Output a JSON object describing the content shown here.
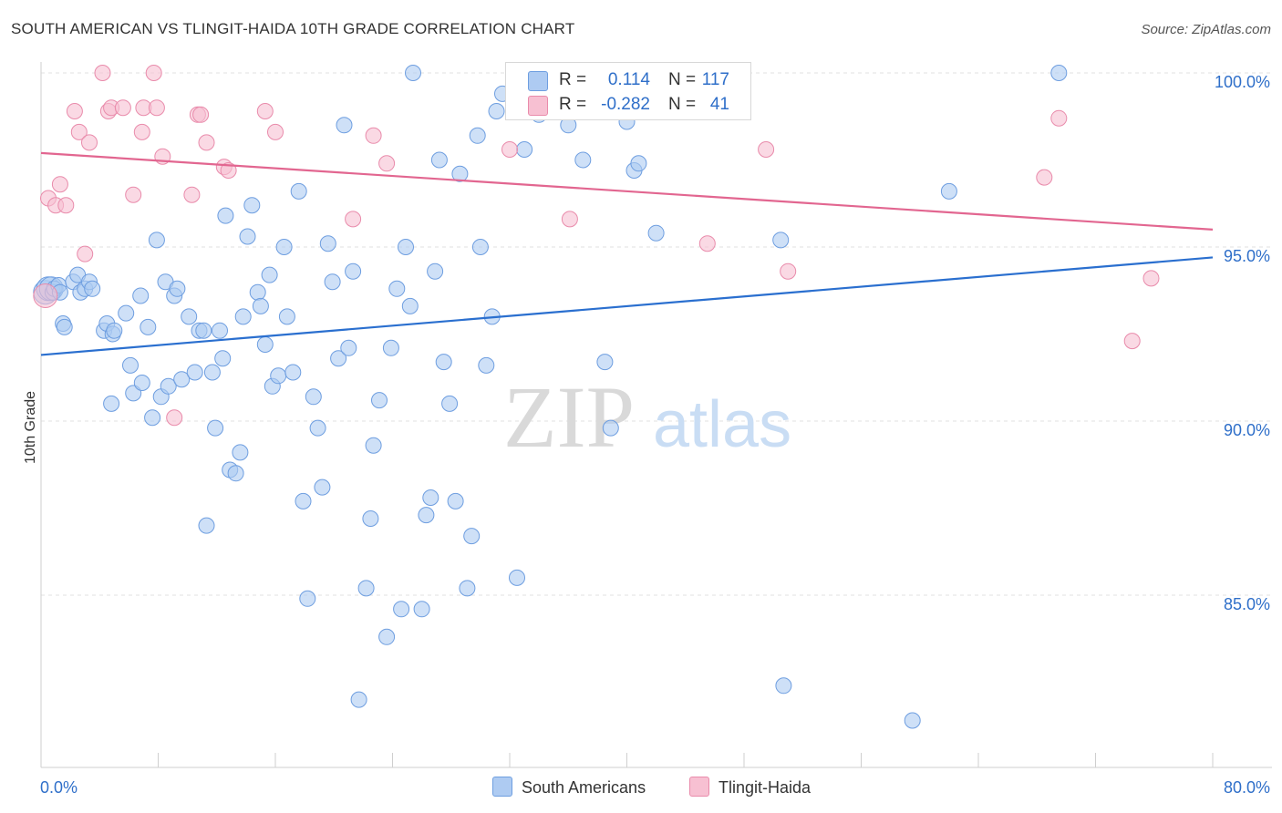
{
  "title": "SOUTH AMERICAN VS TLINGIT-HAIDA 10TH GRADE CORRELATION CHART",
  "source": "Source: ZipAtlas.com",
  "watermark": {
    "zip": "ZIP",
    "atlas": "atlas"
  },
  "legend_top": {
    "rows": [
      {
        "r_label": "R =",
        "r_value": "0.114",
        "n_label": "N =",
        "n_value": "117",
        "color": "#aecbf2",
        "border": "#6e9ee0"
      },
      {
        "r_label": "R =",
        "r_value": "-0.282",
        "n_label": "N =",
        "n_value": "41",
        "color": "#f7c0d2",
        "border": "#e98bab"
      }
    ]
  },
  "legend_bottom": {
    "items": [
      {
        "label": "South Americans",
        "color": "#aecbf2",
        "border": "#6e9ee0"
      },
      {
        "label": "Tlingit-Haida",
        "color": "#f7c0d2",
        "border": "#e98bab"
      }
    ]
  },
  "chart_data": {
    "type": "scatter",
    "title": "SOUTH AMERICAN VS TLINGIT-HAIDA 10TH GRADE CORRELATION CHART",
    "xlabel": "",
    "ylabel": "10th Grade",
    "xlim": [
      0,
      80
    ],
    "ylim": [
      80.5,
      100.6
    ],
    "x_tick_labels": [
      "0.0%",
      "80.0%"
    ],
    "y_ticks": [
      85,
      90,
      95,
      100
    ],
    "y_tick_labels": [
      "85.0%",
      "90.0%",
      "95.0%",
      "100.0%"
    ],
    "grid": "horizontal dashed",
    "legend": "top-center",
    "series": [
      {
        "name": "South Americans",
        "color": "#aecbf2",
        "stroke": "#6e9ee0",
        "line_color": "#2a6fcf",
        "trend": {
          "x": [
            0,
            80
          ],
          "y": [
            91.9,
            94.7
          ]
        },
        "points": [
          [
            0.3,
            93.7
          ],
          [
            0.5,
            93.8
          ],
          [
            0.7,
            93.8
          ],
          [
            0.8,
            93.7
          ],
          [
            0.9,
            93.8
          ],
          [
            1.2,
            93.9
          ],
          [
            1.3,
            93.7
          ],
          [
            1.5,
            92.8
          ],
          [
            1.6,
            92.7
          ],
          [
            2.2,
            94.0
          ],
          [
            2.5,
            94.2
          ],
          [
            2.7,
            93.7
          ],
          [
            3.0,
            93.8
          ],
          [
            3.3,
            94.0
          ],
          [
            3.5,
            93.8
          ],
          [
            4.3,
            92.6
          ],
          [
            4.5,
            92.8
          ],
          [
            4.9,
            92.5
          ],
          [
            5.0,
            92.6
          ],
          [
            4.8,
            90.5
          ],
          [
            5.8,
            93.1
          ],
          [
            6.1,
            91.6
          ],
          [
            6.3,
            90.8
          ],
          [
            6.8,
            93.6
          ],
          [
            6.9,
            91.1
          ],
          [
            7.3,
            92.7
          ],
          [
            7.6,
            90.1
          ],
          [
            7.9,
            95.2
          ],
          [
            8.2,
            90.7
          ],
          [
            8.5,
            94.0
          ],
          [
            8.7,
            91.0
          ],
          [
            9.1,
            93.6
          ],
          [
            9.3,
            93.8
          ],
          [
            9.6,
            91.2
          ],
          [
            10.1,
            93.0
          ],
          [
            10.5,
            91.4
          ],
          [
            10.8,
            92.6
          ],
          [
            11.1,
            92.6
          ],
          [
            11.3,
            87.0
          ],
          [
            11.7,
            91.4
          ],
          [
            11.9,
            89.8
          ],
          [
            12.2,
            92.6
          ],
          [
            12.4,
            91.8
          ],
          [
            12.6,
            95.9
          ],
          [
            12.9,
            88.6
          ],
          [
            13.3,
            88.5
          ],
          [
            13.6,
            89.1
          ],
          [
            13.8,
            93.0
          ],
          [
            14.1,
            95.3
          ],
          [
            14.4,
            96.2
          ],
          [
            14.8,
            93.7
          ],
          [
            15.0,
            93.3
          ],
          [
            15.3,
            92.2
          ],
          [
            15.6,
            94.2
          ],
          [
            15.8,
            91.0
          ],
          [
            16.2,
            91.3
          ],
          [
            16.6,
            95.0
          ],
          [
            16.8,
            93.0
          ],
          [
            17.2,
            91.4
          ],
          [
            17.6,
            96.6
          ],
          [
            17.9,
            87.7
          ],
          [
            18.2,
            84.9
          ],
          [
            18.6,
            90.7
          ],
          [
            18.9,
            89.8
          ],
          [
            19.2,
            88.1
          ],
          [
            19.6,
            95.1
          ],
          [
            19.9,
            94.0
          ],
          [
            20.3,
            91.8
          ],
          [
            20.7,
            98.5
          ],
          [
            21.0,
            92.1
          ],
          [
            21.3,
            94.3
          ],
          [
            21.7,
            82.0
          ],
          [
            22.2,
            85.2
          ],
          [
            22.5,
            87.2
          ],
          [
            22.7,
            89.3
          ],
          [
            23.1,
            90.6
          ],
          [
            23.6,
            83.8
          ],
          [
            23.9,
            92.1
          ],
          [
            24.3,
            93.8
          ],
          [
            24.6,
            84.6
          ],
          [
            24.9,
            95.0
          ],
          [
            25.2,
            93.3
          ],
          [
            25.4,
            100.0
          ],
          [
            26.0,
            84.6
          ],
          [
            26.3,
            87.3
          ],
          [
            26.6,
            87.8
          ],
          [
            26.9,
            94.3
          ],
          [
            27.2,
            97.5
          ],
          [
            27.5,
            91.7
          ],
          [
            27.9,
            90.5
          ],
          [
            28.3,
            87.7
          ],
          [
            28.6,
            97.1
          ],
          [
            29.1,
            85.2
          ],
          [
            29.4,
            86.7
          ],
          [
            29.8,
            98.2
          ],
          [
            30.0,
            95.0
          ],
          [
            30.4,
            91.6
          ],
          [
            30.8,
            93.0
          ],
          [
            31.1,
            98.9
          ],
          [
            31.5,
            99.4
          ],
          [
            32.5,
            85.5
          ],
          [
            33.0,
            97.8
          ],
          [
            34.0,
            98.8
          ],
          [
            35.0,
            100.0
          ],
          [
            36.0,
            98.5
          ],
          [
            37.0,
            97.5
          ],
          [
            37.5,
            99.7
          ],
          [
            38.0,
            100.0
          ],
          [
            38.5,
            91.7
          ],
          [
            38.9,
            89.8
          ],
          [
            40.0,
            98.6
          ],
          [
            40.5,
            97.2
          ],
          [
            40.8,
            97.4
          ],
          [
            42.0,
            95.4
          ],
          [
            50.5,
            95.2
          ],
          [
            50.7,
            82.4
          ],
          [
            59.5,
            81.4
          ],
          [
            62.0,
            96.6
          ],
          [
            69.5,
            100.0
          ]
        ]
      },
      {
        "name": "Tlingit-Haida",
        "color": "#f7c0d2",
        "stroke": "#e98bab",
        "line_color": "#e26690",
        "trend": {
          "x": [
            0,
            80
          ],
          "y": [
            97.7,
            95.5
          ]
        },
        "points": [
          [
            0.3,
            93.6
          ],
          [
            0.5,
            96.4
          ],
          [
            1.0,
            96.2
          ],
          [
            1.3,
            96.8
          ],
          [
            1.7,
            96.2
          ],
          [
            2.3,
            98.9
          ],
          [
            2.6,
            98.3
          ],
          [
            3.0,
            94.8
          ],
          [
            3.3,
            98.0
          ],
          [
            4.2,
            100.0
          ],
          [
            4.6,
            98.9
          ],
          [
            4.8,
            99.0
          ],
          [
            5.6,
            99.0
          ],
          [
            6.3,
            96.5
          ],
          [
            6.9,
            98.3
          ],
          [
            7.0,
            99.0
          ],
          [
            7.7,
            100.0
          ],
          [
            7.9,
            99.0
          ],
          [
            8.3,
            97.6
          ],
          [
            9.1,
            90.1
          ],
          [
            10.3,
            96.5
          ],
          [
            10.7,
            98.8
          ],
          [
            10.9,
            98.8
          ],
          [
            11.3,
            98.0
          ],
          [
            12.5,
            97.3
          ],
          [
            12.8,
            97.2
          ],
          [
            15.3,
            98.9
          ],
          [
            16.0,
            98.3
          ],
          [
            21.3,
            95.8
          ],
          [
            22.7,
            98.2
          ],
          [
            23.6,
            97.4
          ],
          [
            32.0,
            97.8
          ],
          [
            36.1,
            95.8
          ],
          [
            36.3,
            100.0
          ],
          [
            45.5,
            95.1
          ],
          [
            49.5,
            97.8
          ],
          [
            51.0,
            94.3
          ],
          [
            68.5,
            97.0
          ],
          [
            69.5,
            98.7
          ],
          [
            74.5,
            92.3
          ],
          [
            75.8,
            94.1
          ]
        ]
      }
    ]
  }
}
